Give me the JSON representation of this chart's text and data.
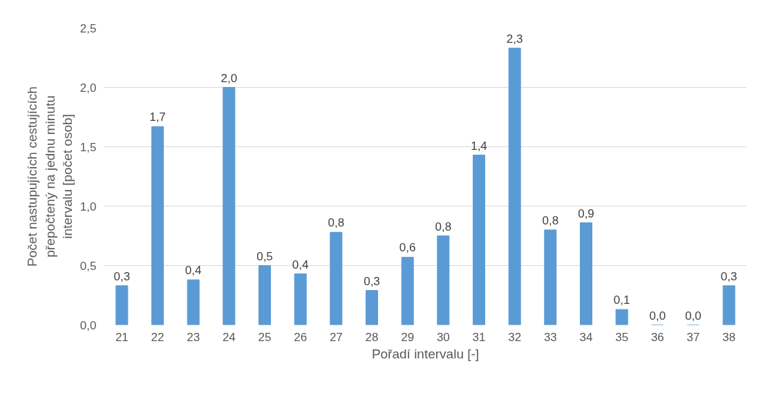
{
  "chart_data": {
    "type": "bar",
    "xlabel": "Pořadí intervalu [-]",
    "ylabel": "Počet nastupujících cestujících přepočtený na jednu minutu intervalu [počet osob]",
    "categories": [
      "21",
      "22",
      "23",
      "24",
      "25",
      "26",
      "27",
      "28",
      "29",
      "30",
      "31",
      "32",
      "33",
      "34",
      "35",
      "36",
      "37",
      "38"
    ],
    "values": [
      0.33,
      1.67,
      0.38,
      2.0,
      0.5,
      0.43,
      0.78,
      0.29,
      0.57,
      0.75,
      1.43,
      2.33,
      0.8,
      0.86,
      0.13,
      0,
      0,
      0.33
    ],
    "value_labels": [
      "0,3",
      "1,7",
      "0,4",
      "2,0",
      "0,5",
      "0,4",
      "0,8",
      "0,3",
      "0,6",
      "0,8",
      "1,4",
      "2,3",
      "0,8",
      "0,9",
      "0,1",
      "0,0",
      "0,0",
      "0,3"
    ],
    "color": "#5b9bd5",
    "ylim": [
      0,
      2.5
    ],
    "yticks": [
      {
        "value": 0,
        "label": "0,0"
      },
      {
        "value": 0.5,
        "label": "0,5"
      },
      {
        "value": 1,
        "label": "1,0"
      },
      {
        "value": 1.5,
        "label": "1,5"
      },
      {
        "value": 2,
        "label": "2,0"
      },
      {
        "value": 2.5,
        "label": "2,5"
      }
    ],
    "grid": "y"
  }
}
